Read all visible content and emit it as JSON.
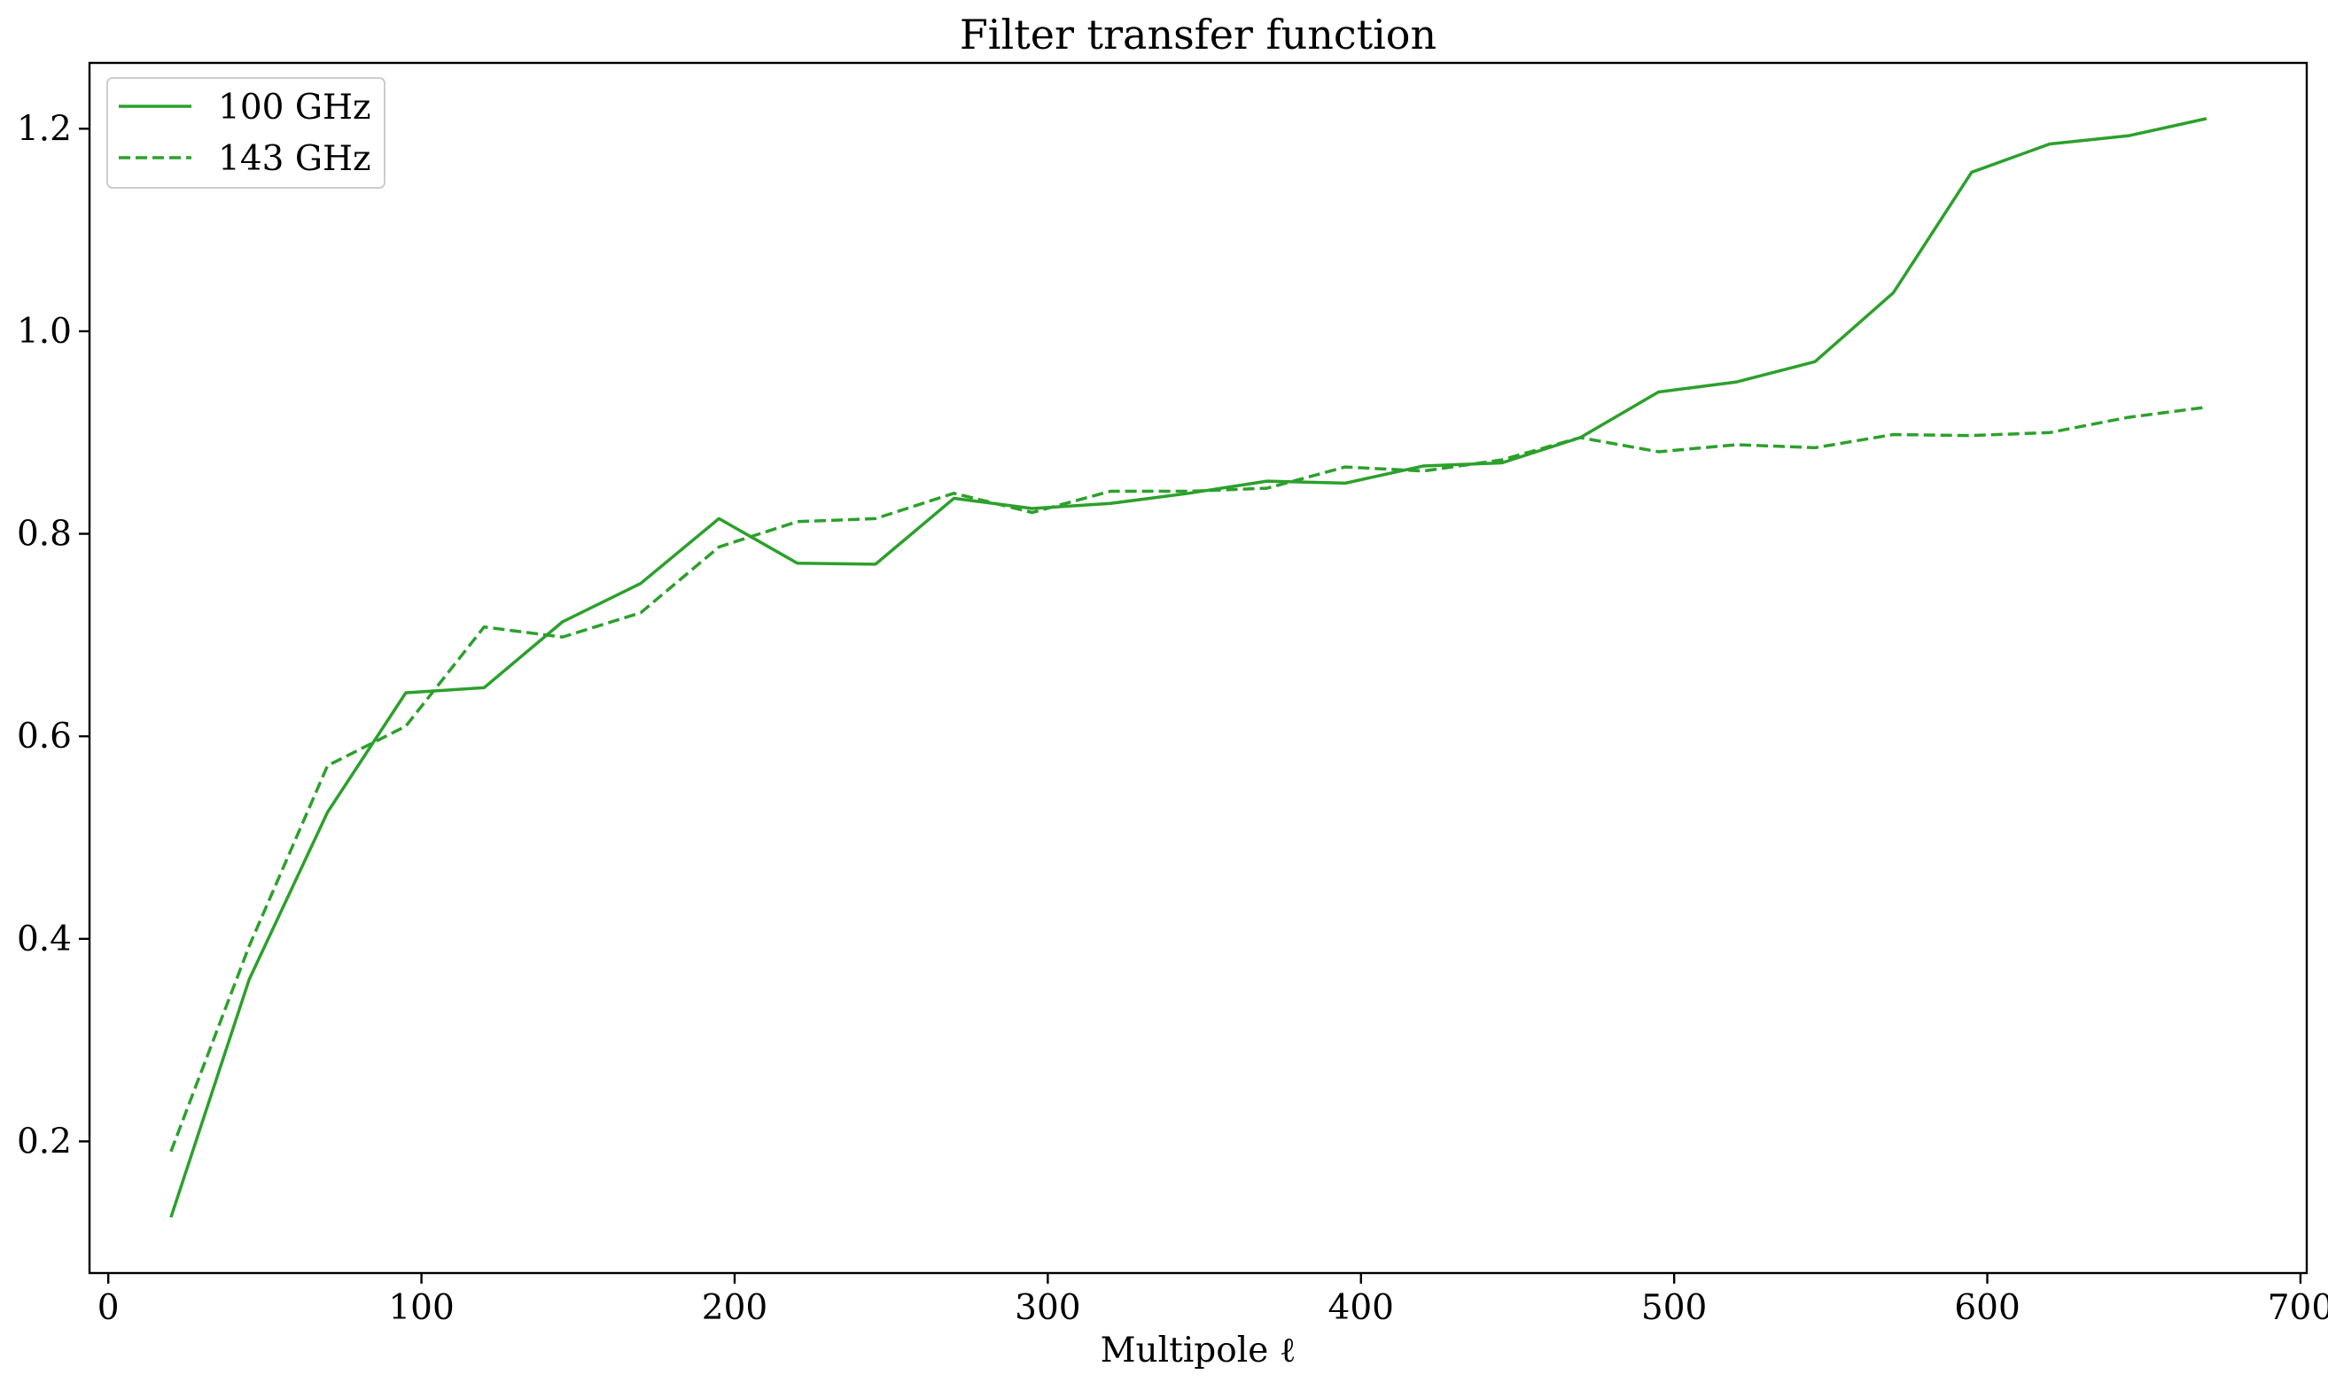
{
  "chart_data": {
    "type": "line",
    "title": "Filter transfer function",
    "xlabel": "Multipole ℓ",
    "ylabel": "",
    "xlim": [
      -6,
      702
    ],
    "ylim": [
      0.07,
      1.265
    ],
    "xticks": [
      0,
      100,
      200,
      300,
      400,
      500,
      600,
      700
    ],
    "xtick_labels": [
      "0",
      "100",
      "200",
      "300",
      "400",
      "500",
      "600",
      "700"
    ],
    "yticks": [
      0.2,
      0.4,
      0.6,
      0.8,
      1.0,
      1.2
    ],
    "ytick_labels": [
      "0.2",
      "0.4",
      "0.6",
      "0.8",
      "1.0",
      "1.2"
    ],
    "grid": false,
    "legend_position": "top-left",
    "x": [
      20,
      45,
      70,
      95,
      120,
      145,
      170,
      195,
      220,
      245,
      270,
      295,
      320,
      345,
      370,
      395,
      420,
      445,
      470,
      495,
      520,
      545,
      570,
      595,
      620,
      645,
      670
    ],
    "series": [
      {
        "name": "100 GHz",
        "color": "#2ca02c",
        "line_style": "solid",
        "values": [
          0.125,
          0.36,
          0.525,
          0.643,
          0.648,
          0.713,
          0.751,
          0.815,
          0.771,
          0.77,
          0.835,
          0.825,
          0.83,
          0.84,
          0.852,
          0.85,
          0.867,
          0.87,
          0.895,
          0.94,
          0.95,
          0.97,
          1.038,
          1.157,
          1.185,
          1.193,
          1.21
        ]
      },
      {
        "name": "143 GHz",
        "color": "#2ca02c",
        "line_style": "dashed",
        "values": [
          0.19,
          0.393,
          0.571,
          0.61,
          0.708,
          0.698,
          0.722,
          0.787,
          0.812,
          0.815,
          0.84,
          0.821,
          0.842,
          0.842,
          0.845,
          0.866,
          0.862,
          0.873,
          0.895,
          0.881,
          0.888,
          0.885,
          0.898,
          0.897,
          0.9,
          0.915,
          0.925
        ]
      }
    ]
  }
}
